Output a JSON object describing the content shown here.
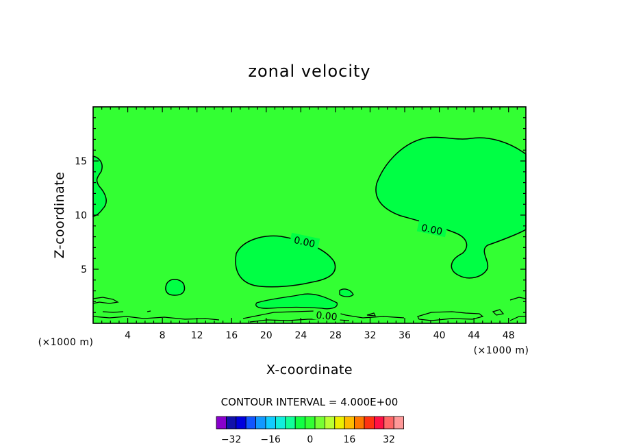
{
  "chart_data": {
    "type": "contour",
    "title": "zonal velocity",
    "xlabel": "X-coordinate",
    "ylabel": "Z-coordinate",
    "x_unit": "(×1000 m)",
    "z_unit": "(×1000 m)",
    "xlim": [
      0,
      50
    ],
    "ylim": [
      0,
      20
    ],
    "x_ticks": [
      4,
      8,
      12,
      16,
      20,
      24,
      28,
      32,
      36,
      40,
      44,
      48
    ],
    "y_ticks": [
      5,
      10,
      15
    ],
    "contour_interval_text": "CONTOUR INTERVAL = 4.000E+00",
    "contour_labels": [
      "0.00",
      "0.00",
      "0.00"
    ],
    "background_color": "#33ff33",
    "positive_region_color": "#00ff44",
    "colorbar": {
      "colors": [
        "#8800cc",
        "#1111aa",
        "#0000dd",
        "#1155ff",
        "#1199ff",
        "#11ccff",
        "#11eedd",
        "#11ff99",
        "#11ff44",
        "#33ff33",
        "#77ff33",
        "#bbff33",
        "#eeee00",
        "#ffbb00",
        "#ff7700",
        "#ff3311",
        "#ff1144",
        "#ff6666",
        "#ff9999"
      ],
      "tick_labels": [
        "-32",
        "-16",
        "0",
        "16",
        "32"
      ],
      "tick_values": [
        -32,
        -16,
        0,
        16,
        32
      ]
    }
  }
}
